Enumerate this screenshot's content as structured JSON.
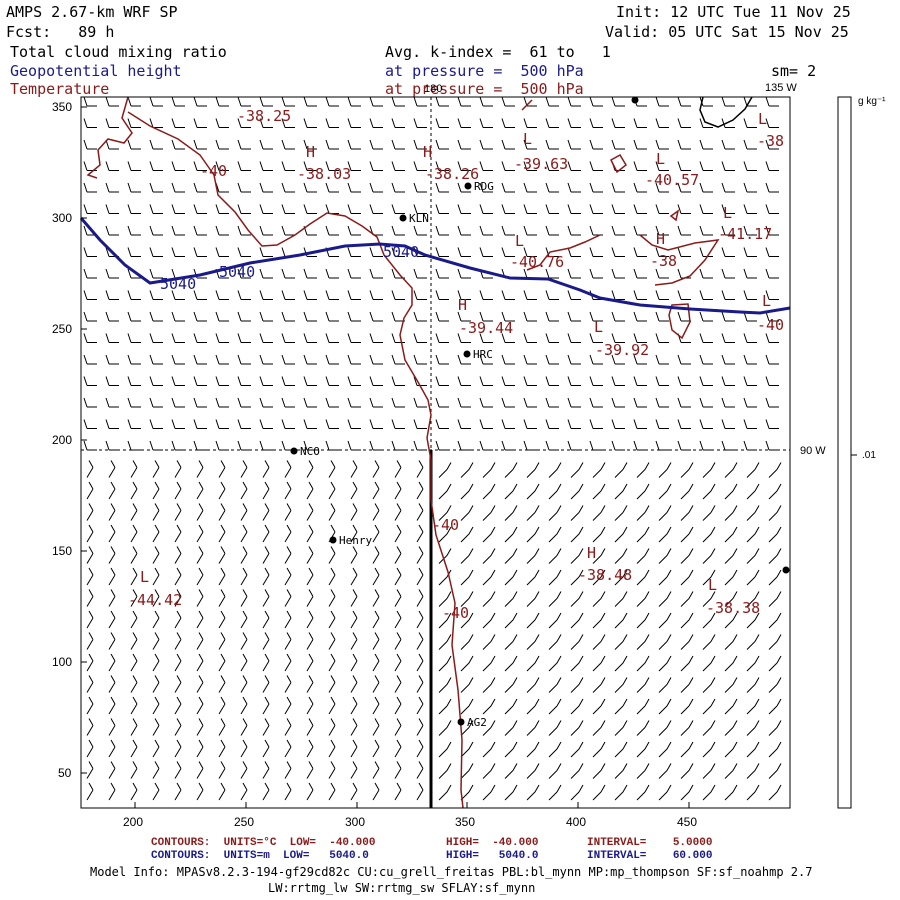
{
  "header": {
    "model": "AMPS 2.67-km WRF SP",
    "init": "Init: 12 UTC Tue 11 Nov 25",
    "fcst": "Fcst:   89 h",
    "valid": "Valid: 05 UTC Sat 15 Nov 25",
    "field1": "Total cloud mixing ratio",
    "field2": "Geopotential height",
    "field3": "Temperature",
    "avg": "Avg. k-index =  61 to   1",
    "pressure1": "at pressure =  500 hPa",
    "pressure2": "at pressure =  500 hPa",
    "sm": "sm= 2"
  },
  "map": {
    "lon_180": "180",
    "lon_135": "135 W",
    "lon_90": "90 W",
    "stations": [
      {
        "name": "RDG",
        "x": 468,
        "y": 186
      },
      {
        "name": "KLN",
        "x": 403,
        "y": 218
      },
      {
        "name": "HRC",
        "x": 467,
        "y": 354
      },
      {
        "name": "NCO",
        "x": 294,
        "y": 451
      },
      {
        "name": "Henry",
        "x": 333,
        "y": 540
      },
      {
        "name": "AG2",
        "x": 461,
        "y": 722
      }
    ],
    "temp_labels": [
      {
        "text": "-38.25",
        "x": 237,
        "y": 107
      },
      {
        "text": "-40",
        "x": 200,
        "y": 162
      },
      {
        "text": "-38.03",
        "x": 297,
        "y": 165
      },
      {
        "text": "-38.26",
        "x": 425,
        "y": 165
      },
      {
        "text": "-39.63",
        "x": 514,
        "y": 155
      },
      {
        "text": "-40.57",
        "x": 645,
        "y": 171
      },
      {
        "text": "-38",
        "x": 757,
        "y": 132
      },
      {
        "text": "-41.17",
        "x": 718,
        "y": 225
      },
      {
        "text": "-40.76",
        "x": 510,
        "y": 253
      },
      {
        "text": "-38",
        "x": 650,
        "y": 252
      },
      {
        "text": "-39.44",
        "x": 459,
        "y": 319
      },
      {
        "text": "-39.92",
        "x": 595,
        "y": 341
      },
      {
        "text": "-40",
        "x": 757,
        "y": 316
      },
      {
        "text": "-40",
        "x": 432,
        "y": 516
      },
      {
        "text": "-38.48",
        "x": 578,
        "y": 566
      },
      {
        "text": "-44.42",
        "x": 128,
        "y": 591
      },
      {
        "text": "-38.38",
        "x": 706,
        "y": 599
      },
      {
        "text": "-40",
        "x": 442,
        "y": 604
      }
    ],
    "hl_labels": [
      {
        "text": "H",
        "x": 306,
        "y": 143
      },
      {
        "text": "H",
        "x": 423,
        "y": 143
      },
      {
        "text": "L",
        "x": 523,
        "y": 130
      },
      {
        "text": "L",
        "x": 656,
        "y": 150
      },
      {
        "text": "L",
        "x": 758,
        "y": 110
      },
      {
        "text": "L",
        "x": 723,
        "y": 204
      },
      {
        "text": "H",
        "x": 656,
        "y": 230
      },
      {
        "text": "L",
        "x": 515,
        "y": 232
      },
      {
        "text": "H",
        "x": 458,
        "y": 296
      },
      {
        "text": "L",
        "x": 594,
        "y": 318
      },
      {
        "text": "L",
        "x": 762,
        "y": 292
      },
      {
        "text": "H",
        "x": 587,
        "y": 544
      },
      {
        "text": "L",
        "x": 140,
        "y": 568
      },
      {
        "text": "L",
        "x": 708,
        "y": 576
      }
    ],
    "height_labels": [
      {
        "text": "5040",
        "x": 160,
        "y": 275
      },
      {
        "text": "5040",
        "x": 219,
        "y": 263
      },
      {
        "text": "5040",
        "x": 383,
        "y": 243
      }
    ],
    "x_ticks": [
      "200",
      "250",
      "300",
      "350",
      "400",
      "450"
    ],
    "y_ticks": [
      "350",
      "300",
      "250",
      "200",
      "150",
      "100",
      "50"
    ]
  },
  "colorbar": {
    "unit": "g kg⁻¹",
    "value": ".01"
  },
  "legend": {
    "temp_contours": "CONTOURS:  UNITS=°C  LOW=  -40.000",
    "temp_high": "HIGH=  -40.000",
    "temp_interval": "INTERVAL=    5.0000",
    "height_contours": "CONTOURS:  UNITS=m  LOW=   5040.0",
    "height_high": "HIGH=   5040.0",
    "height_interval": "INTERVAL=    60.000",
    "model_info": "Model Info: MPASv8.2.3-194-gf29cd82c CU:cu_grell_freitas PBL:bl_mynn MP:mp_thompson SF:sf_noahmp 2.7",
    "model_info2": "LW:rrtmg_lw SW:rrtmg_sw SFLAY:sf_mynn"
  },
  "colors": {
    "temperature": "#8b1a1a",
    "height": "#1a1a8c"
  }
}
